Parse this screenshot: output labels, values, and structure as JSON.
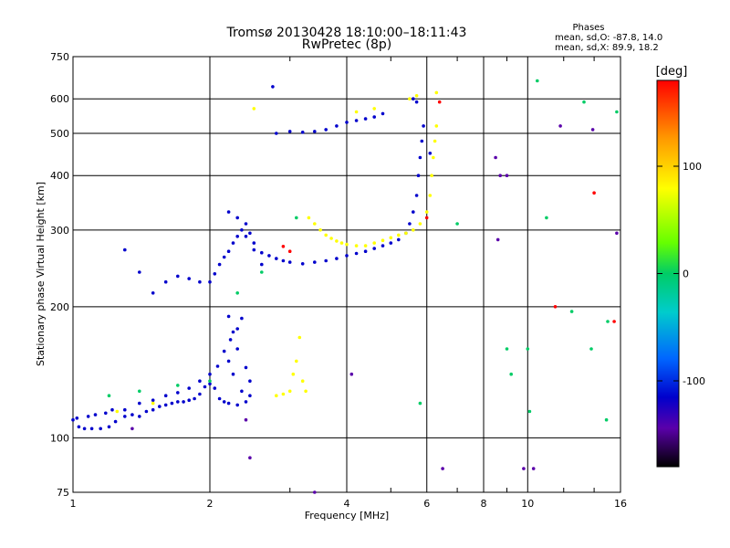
{
  "header": {
    "title": "Tromsø 20130428 18:10:00–18:11:43",
    "subtitle": "RwPretec (8p)"
  },
  "phase_box": {
    "heading": "Phases",
    "line_o": "mean, sd,O: -87.8, 14.0",
    "line_x": "mean, sd,X: 89.9, 18.2"
  },
  "colorbar": {
    "title": "[deg]",
    "ticks": [
      "100",
      "0",
      "-100"
    ],
    "tick_values": [
      100,
      0,
      -100
    ],
    "range": [
      -180,
      180
    ],
    "colors": [
      "#ff0000",
      "#ff9900",
      "#ffff00",
      "#66ff00",
      "#00cc66",
      "#00cccc",
      "#0066ff",
      "#0000cc",
      "#5a00aa",
      "#000000"
    ]
  },
  "chart_data": {
    "type": "scatter",
    "xlabel": "Frequency [MHz]",
    "ylabel": "Stationary phase Virtual Height [km]",
    "xscale": "log",
    "yscale": "log",
    "xlim": [
      1,
      16
    ],
    "ylim": [
      75,
      750
    ],
    "x_ticks": [
      1,
      2,
      4,
      6,
      8,
      10,
      16
    ],
    "x_tick_labels": [
      "1",
      "2",
      "4",
      "6",
      "8",
      "10",
      "16"
    ],
    "y_ticks": [
      75,
      100,
      200,
      300,
      400,
      500,
      600,
      750
    ],
    "y_tick_labels": [
      "75",
      "100",
      "200",
      "300",
      "400",
      "500",
      "600",
      "750"
    ],
    "grid": true,
    "series": [
      {
        "phase_deg": -95,
        "points": [
          [
            1.0,
            110
          ],
          [
            1.03,
            106
          ],
          [
            1.06,
            105
          ],
          [
            1.1,
            105
          ],
          [
            1.15,
            105
          ],
          [
            1.2,
            106
          ],
          [
            1.24,
            109
          ],
          [
            1.3,
            112
          ],
          [
            1.35,
            113
          ],
          [
            1.4,
            112
          ],
          [
            1.45,
            115
          ],
          [
            1.5,
            116
          ],
          [
            1.55,
            118
          ],
          [
            1.6,
            119
          ],
          [
            1.65,
            120
          ],
          [
            1.7,
            121
          ],
          [
            1.75,
            121
          ],
          [
            1.8,
            122
          ],
          [
            1.85,
            123
          ],
          [
            1.9,
            126
          ],
          [
            1.95,
            131
          ],
          [
            2.0,
            133
          ],
          [
            2.05,
            130
          ],
          [
            2.1,
            123
          ],
          [
            2.15,
            121
          ],
          [
            2.2,
            120
          ],
          [
            2.3,
            119
          ],
          [
            2.4,
            121
          ],
          [
            1.02,
            111
          ],
          [
            1.08,
            112
          ],
          [
            1.12,
            113
          ],
          [
            1.18,
            114
          ],
          [
            1.22,
            116
          ],
          [
            1.3,
            116
          ],
          [
            1.4,
            120
          ],
          [
            1.5,
            122
          ],
          [
            1.6,
            125
          ],
          [
            1.7,
            127
          ],
          [
            1.8,
            130
          ],
          [
            1.9,
            135
          ],
          [
            2.0,
            140
          ],
          [
            2.08,
            146
          ],
          [
            2.15,
            158
          ],
          [
            2.22,
            168
          ],
          [
            2.3,
            178
          ],
          [
            2.35,
            188
          ],
          [
            2.2,
            150
          ],
          [
            2.25,
            140
          ],
          [
            2.35,
            128
          ],
          [
            2.45,
            125
          ],
          [
            2.2,
            190
          ],
          [
            2.25,
            175
          ],
          [
            2.3,
            160
          ],
          [
            2.4,
            145
          ],
          [
            2.45,
            135
          ]
        ]
      },
      {
        "phase_deg": -110,
        "points": [
          [
            1.6,
            228
          ],
          [
            1.7,
            235
          ],
          [
            1.8,
            232
          ],
          [
            1.9,
            228
          ],
          [
            2.0,
            228
          ],
          [
            2.05,
            238
          ],
          [
            2.1,
            250
          ],
          [
            2.15,
            260
          ],
          [
            2.2,
            268
          ],
          [
            2.25,
            280
          ],
          [
            2.3,
            290
          ],
          [
            2.35,
            300
          ],
          [
            2.4,
            310
          ],
          [
            2.45,
            295
          ],
          [
            2.5,
            280
          ],
          [
            2.6,
            266
          ],
          [
            2.7,
            262
          ],
          [
            2.8,
            258
          ],
          [
            2.9,
            255
          ],
          [
            3.0,
            253
          ],
          [
            3.2,
            251
          ],
          [
            3.4,
            253
          ],
          [
            3.6,
            255
          ],
          [
            3.8,
            258
          ],
          [
            4.0,
            262
          ],
          [
            4.2,
            265
          ],
          [
            4.4,
            268
          ],
          [
            4.6,
            272
          ],
          [
            4.8,
            276
          ],
          [
            5.0,
            280
          ],
          [
            5.2,
            285
          ],
          [
            5.4,
            295
          ],
          [
            5.5,
            310
          ],
          [
            5.6,
            330
          ],
          [
            5.7,
            360
          ],
          [
            5.75,
            400
          ],
          [
            5.8,
            440
          ],
          [
            5.85,
            480
          ],
          [
            5.9,
            520
          ],
          [
            2.2,
            330
          ],
          [
            2.3,
            320
          ],
          [
            2.4,
            290
          ],
          [
            2.5,
            270
          ],
          [
            2.6,
            250
          ],
          [
            1.5,
            215
          ],
          [
            1.4,
            240
          ],
          [
            1.3,
            270
          ],
          [
            2.8,
            500
          ],
          [
            3.0,
            505
          ],
          [
            3.2,
            503
          ],
          [
            3.4,
            505
          ],
          [
            3.6,
            510
          ],
          [
            3.8,
            520
          ],
          [
            4.0,
            530
          ],
          [
            4.2,
            535
          ],
          [
            4.4,
            540
          ],
          [
            4.6,
            545
          ],
          [
            4.8,
            555
          ],
          [
            2.75,
            640
          ],
          [
            6.1,
            450
          ],
          [
            5.6,
            600
          ],
          [
            5.7,
            590
          ]
        ]
      },
      {
        "phase_deg": 100,
        "points": [
          [
            3.3,
            320
          ],
          [
            3.4,
            310
          ],
          [
            3.5,
            300
          ],
          [
            3.6,
            292
          ],
          [
            3.7,
            287
          ],
          [
            3.8,
            283
          ],
          [
            3.9,
            280
          ],
          [
            4.0,
            278
          ],
          [
            4.2,
            276
          ],
          [
            4.4,
            276
          ],
          [
            4.6,
            280
          ],
          [
            4.8,
            284
          ],
          [
            5.0,
            288
          ],
          [
            5.2,
            292
          ],
          [
            5.4,
            295
          ],
          [
            5.6,
            300
          ],
          [
            5.8,
            310
          ],
          [
            6.0,
            330
          ],
          [
            6.1,
            360
          ],
          [
            6.15,
            400
          ],
          [
            6.2,
            440
          ],
          [
            6.25,
            480
          ],
          [
            6.3,
            520
          ],
          [
            6.3,
            620
          ],
          [
            4.2,
            560
          ],
          [
            4.6,
            570
          ],
          [
            5.5,
            600
          ],
          [
            5.7,
            610
          ],
          [
            2.8,
            125
          ],
          [
            2.9,
            126
          ],
          [
            3.0,
            128
          ],
          [
            3.05,
            140
          ],
          [
            3.1,
            150
          ],
          [
            3.15,
            170
          ],
          [
            3.2,
            135
          ],
          [
            3.25,
            128
          ],
          [
            1.5,
            120
          ],
          [
            1.25,
            115
          ],
          [
            2.5,
            570
          ]
        ]
      },
      {
        "phase_deg": 10,
        "points": [
          [
            1.2,
            125
          ],
          [
            1.4,
            128
          ],
          [
            1.7,
            132
          ],
          [
            2.0,
            135
          ],
          [
            2.3,
            215
          ],
          [
            2.6,
            240
          ],
          [
            3.1,
            320
          ],
          [
            5.8,
            120
          ],
          [
            7.0,
            310
          ],
          [
            10.5,
            660
          ],
          [
            13.3,
            590
          ],
          [
            15.7,
            560
          ],
          [
            11.0,
            320
          ],
          [
            12.5,
            195
          ],
          [
            13.8,
            160
          ],
          [
            9.0,
            160
          ],
          [
            10.0,
            160
          ],
          [
            10.1,
            115
          ],
          [
            15.0,
            185
          ],
          [
            14.9,
            110
          ],
          [
            9.2,
            140
          ]
        ]
      },
      {
        "phase_deg": 170,
        "points": [
          [
            2.9,
            275
          ],
          [
            3.0,
            268
          ],
          [
            6.0,
            320
          ],
          [
            11.5,
            200
          ],
          [
            14.0,
            365
          ],
          [
            15.5,
            185
          ],
          [
            6.4,
            590
          ]
        ]
      },
      {
        "phase_deg": -120,
        "points": [
          [
            8.5,
            440
          ],
          [
            8.7,
            400
          ],
          [
            8.6,
            285
          ],
          [
            9.0,
            400
          ],
          [
            11.8,
            520
          ],
          [
            13.9,
            510
          ],
          [
            15.7,
            295
          ],
          [
            6.5,
            85
          ],
          [
            10.3,
            85
          ],
          [
            9.8,
            85
          ],
          [
            2.4,
            110
          ],
          [
            4.1,
            140
          ],
          [
            3.4,
            75
          ],
          [
            1.35,
            105
          ],
          [
            2.45,
            90
          ]
        ]
      }
    ]
  }
}
